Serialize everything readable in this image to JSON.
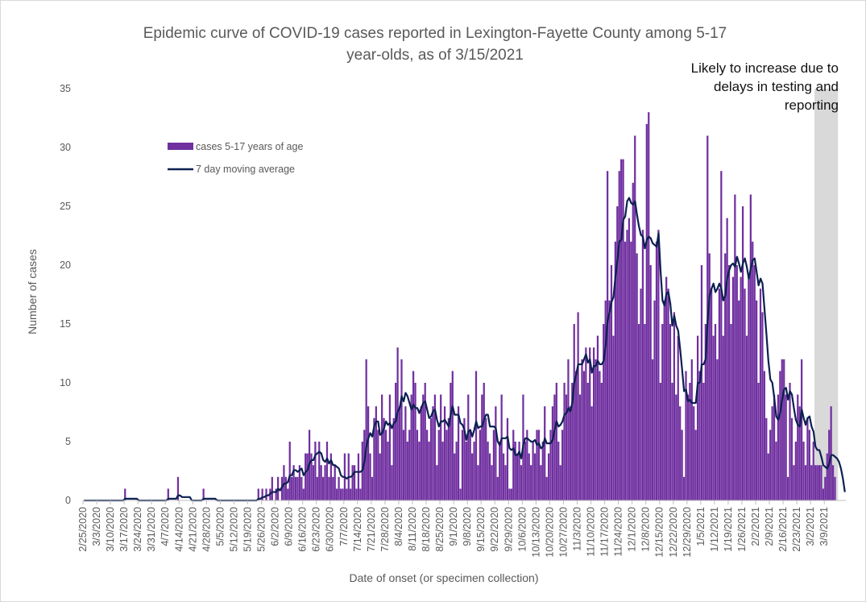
{
  "chart_data": {
    "type": "bar",
    "title": "Epidemic curve of COVID-19 cases reported in Lexington-Fayette County among 5-17 year-olds, as of 3/15/2021",
    "title_lines": [
      "Epidemic curve of COVID-19 cases reported in Lexington-Fayette County among 5-17",
      "year-olds, as of 3/15/2021"
    ],
    "xlabel": "Date of onset (or specimen collection)",
    "ylabel": "Number of cases",
    "ylim": [
      0,
      35
    ],
    "yticks": [
      0,
      5,
      10,
      15,
      20,
      25,
      30,
      35
    ],
    "grid": false,
    "legend_position": "upper-left",
    "start_date": "2020-02-25",
    "x_tick_labels": [
      "2/25/2020",
      "3/3/2020",
      "3/10/2020",
      "3/17/2020",
      "3/24/2020",
      "3/31/2020",
      "4/7/2020",
      "4/14/2020",
      "4/21/2020",
      "4/28/2020",
      "5/5/2020",
      "5/12/2020",
      "5/19/2020",
      "5/26/2020",
      "6/2/2020",
      "6/9/2020",
      "6/16/2020",
      "6/23/2020",
      "6/30/2020",
      "7/7/2020",
      "7/14/2020",
      "7/21/2020",
      "7/28/2020",
      "8/4/2020",
      "8/11/2020",
      "8/18/2020",
      "8/25/2020",
      "9/1/2020",
      "9/8/2020",
      "9/15/2020",
      "9/22/2020",
      "9/29/2020",
      "10/6/2020",
      "10/13/2020",
      "10/20/2020",
      "10/27/2020",
      "11/3/2020",
      "11/10/2020",
      "11/17/2020",
      "11/24/2020",
      "12/1/2020",
      "12/8/2020",
      "12/15/2020",
      "12/22/2020",
      "12/29/2020",
      "1/5/2021",
      "1/12/2021",
      "1/19/2021",
      "1/26/2021",
      "2/2/2021",
      "2/9/2021",
      "2/16/2021",
      "2/23/2021",
      "3/2/2021",
      "3/9/2021"
    ],
    "series": [
      {
        "name": "cases 5-17 years of age",
        "kind": "bar",
        "color": "#7030a0",
        "values": [
          0,
          0,
          0,
          0,
          0,
          0,
          0,
          0,
          0,
          0,
          0,
          0,
          0,
          0,
          0,
          0,
          0,
          0,
          0,
          0,
          0,
          1,
          0,
          0,
          0,
          0,
          0,
          0,
          0,
          0,
          0,
          0,
          0,
          0,
          0,
          0,
          0,
          0,
          0,
          0,
          0,
          0,
          0,
          1,
          0,
          0,
          0,
          0,
          2,
          0,
          0,
          0,
          0,
          0,
          0,
          0,
          0,
          0,
          0,
          0,
          0,
          1,
          0,
          0,
          0,
          0,
          0,
          0,
          0,
          0,
          0,
          0,
          0,
          0,
          0,
          0,
          0,
          0,
          0,
          0,
          0,
          0,
          0,
          0,
          0,
          0,
          0,
          0,
          0,
          1,
          0,
          1,
          0,
          1,
          0,
          1,
          2,
          0,
          1,
          2,
          0,
          2,
          3,
          2,
          1,
          5,
          2,
          3,
          2,
          2,
          3,
          2,
          1,
          4,
          4,
          6,
          4,
          3,
          5,
          2,
          5,
          3,
          2,
          3,
          5,
          2,
          4,
          2,
          3,
          1,
          2,
          1,
          1,
          4,
          1,
          4,
          1,
          3,
          3,
          1,
          4,
          1,
          5,
          6,
          12,
          8,
          4,
          2,
          7,
          8,
          6,
          4,
          9,
          7,
          6,
          5,
          9,
          3,
          7,
          10,
          13,
          8,
          12,
          6,
          8,
          5,
          6,
          9,
          11,
          10,
          6,
          5,
          8,
          9,
          10,
          6,
          5,
          7,
          8,
          9,
          3,
          6,
          9,
          5,
          8,
          6,
          7,
          10,
          11,
          4,
          5,
          8,
          1,
          6,
          7,
          5,
          9,
          6,
          4,
          5,
          11,
          3,
          6,
          9,
          10,
          7,
          5,
          4,
          3,
          6,
          8,
          2,
          5,
          9,
          4,
          3,
          7,
          1,
          1,
          6,
          5,
          4,
          5,
          3,
          9,
          5,
          6,
          4,
          3,
          5,
          4,
          6,
          6,
          3,
          5,
          8,
          2,
          4,
          6,
          8,
          9,
          10,
          5,
          3,
          6,
          10,
          9,
          12,
          8,
          10,
          15,
          11,
          16,
          9,
          12,
          11,
          13,
          10,
          13,
          8,
          13,
          12,
          14,
          11,
          10,
          15,
          17,
          28,
          17,
          20,
          14,
          22,
          25,
          28,
          29,
          29,
          22,
          23,
          24,
          22,
          27,
          31,
          21,
          15,
          18,
          23,
          15,
          32,
          33,
          20,
          12,
          17,
          22,
          23,
          10,
          15,
          17,
          19,
          18,
          15,
          10,
          16,
          9,
          14,
          8,
          6,
          2,
          11,
          9,
          10,
          12,
          8,
          6,
          14,
          11,
          20,
          10,
          15,
          31,
          21,
          18,
          14,
          15,
          12,
          18,
          28,
          14,
          21,
          24,
          20,
          15,
          19,
          26,
          20,
          17,
          19,
          25,
          18,
          14,
          19,
          26,
          22,
          20,
          17,
          10,
          18,
          16,
          11,
          7,
          4,
          6,
          8,
          9,
          5,
          9,
          11,
          12,
          12,
          9,
          2,
          10,
          7,
          3,
          5,
          9,
          8,
          12,
          5,
          3,
          7,
          6,
          3,
          5,
          3,
          3,
          3,
          3,
          1,
          2,
          4,
          6,
          8,
          3,
          2,
          0,
          0,
          0,
          0,
          0
        ]
      },
      {
        "name": "7 day moving average",
        "kind": "line",
        "color": "#0c2050",
        "smoothing_window": 7
      }
    ],
    "shaded_region": {
      "from_date": "2021-03-04",
      "to_date": "2021-03-15",
      "color": "#d9d9d9",
      "note_lines": [
        "Likely to increase due to",
        "delays in testing and",
        "reporting"
      ]
    }
  }
}
